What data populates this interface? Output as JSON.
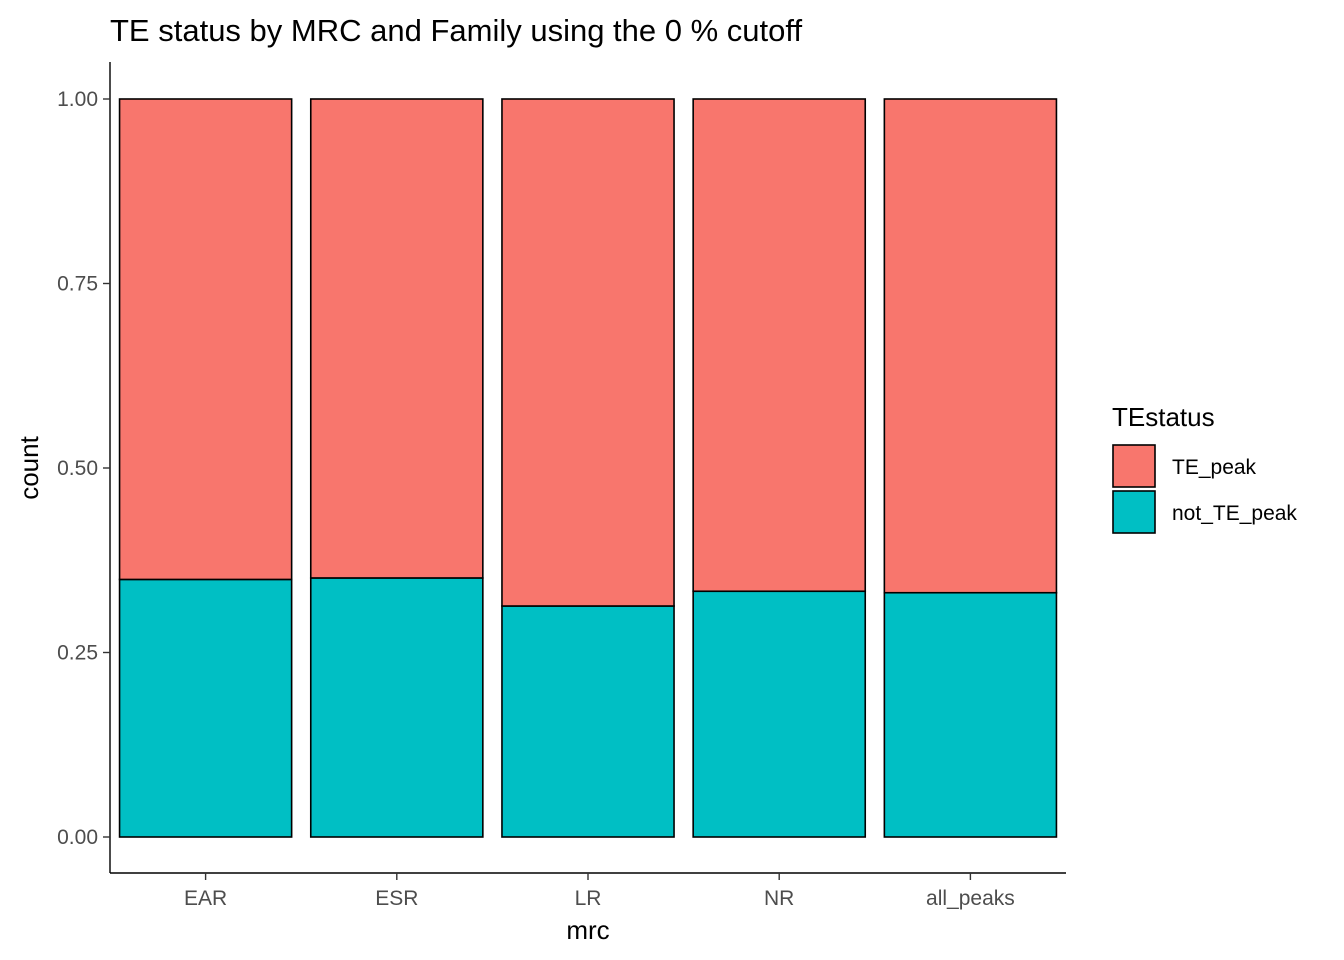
{
  "chart_data": {
    "type": "bar",
    "stacked": true,
    "title": "TE status by MRC and Family using the  0 % cutoff",
    "xlabel": "mrc",
    "ylabel": "count",
    "categories": [
      "EAR",
      "ESR",
      "LR",
      "NR",
      "all_peaks"
    ],
    "series": [
      {
        "name": "not_TE_peak",
        "color": "#00BFC4",
        "values": [
          0.349,
          0.351,
          0.313,
          0.333,
          0.331
        ]
      },
      {
        "name": "TE_peak",
        "color": "#F8766D",
        "values": [
          0.651,
          0.649,
          0.687,
          0.667,
          0.669
        ]
      }
    ],
    "stack_order_bottom_to_top": [
      "not_TE_peak",
      "TE_peak"
    ],
    "ylim": [
      0,
      1.05
    ],
    "yticks": [
      "0.00",
      "0.25",
      "0.50",
      "0.75",
      "1.00"
    ],
    "ytick_values": [
      0,
      0.25,
      0.5,
      0.75,
      1.0
    ],
    "grid": false,
    "legend": {
      "title": "TEstatus",
      "placement": "right",
      "entries": [
        "TE_peak",
        "not_TE_peak"
      ]
    }
  }
}
